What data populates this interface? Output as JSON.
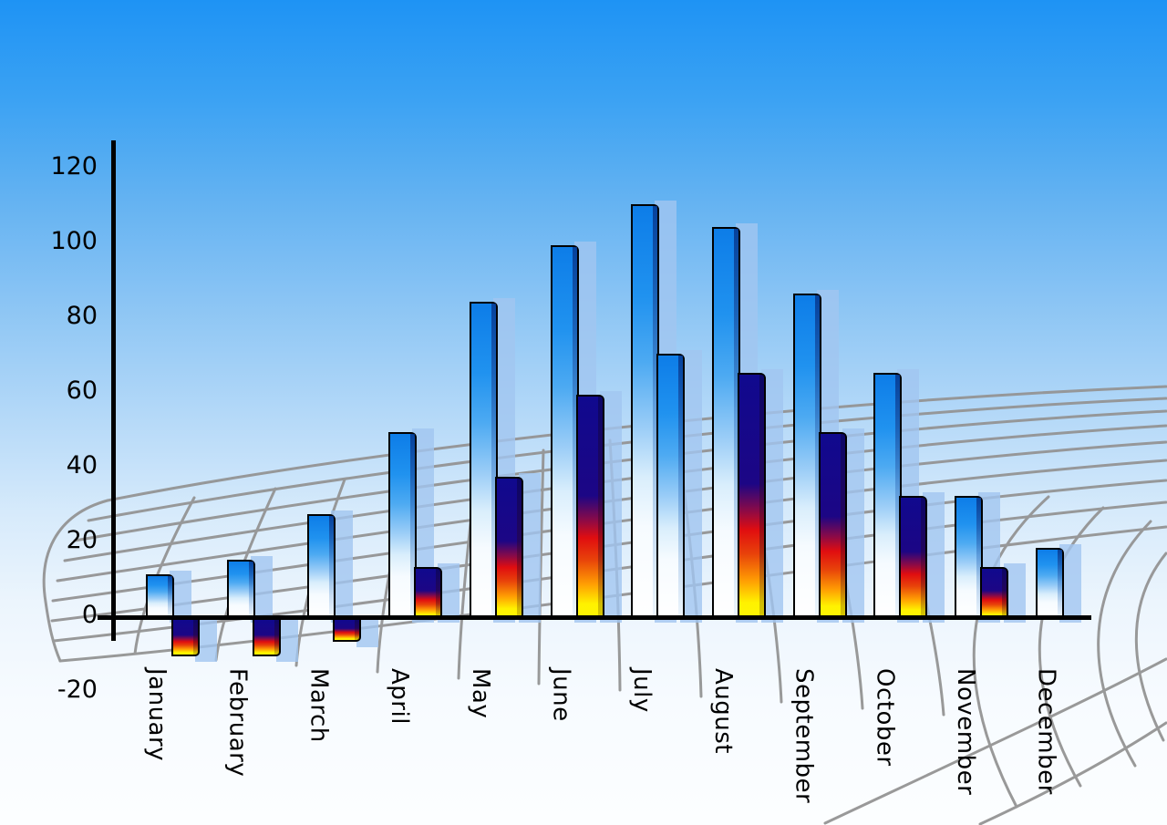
{
  "chart_data": {
    "type": "bar",
    "title": "",
    "xlabel": "",
    "ylabel": "",
    "categories": [
      "January",
      "February",
      "March",
      "April",
      "May",
      "June",
      "July",
      "August",
      "September",
      "October",
      "November",
      "December"
    ],
    "series": [
      {
        "name": "Series 1 (blue gradient bars)",
        "values": [
          11,
          15,
          27,
          49,
          84,
          99,
          110,
          104,
          86,
          65,
          32,
          18
        ]
      },
      {
        "name": "Series 2 (navy-red-yellow bars)",
        "values": [
          -10,
          -10,
          -6,
          13,
          37,
          59,
          70,
          65,
          49,
          32,
          13,
          null
        ],
        "point_styles": [
          "fire",
          "fire",
          "fire",
          "fire",
          "fire",
          "fire",
          "blue",
          "fire",
          "fire",
          "fire",
          "fire",
          null
        ]
      }
    ],
    "y_axis": {
      "ticks": [
        120,
        100,
        80,
        60,
        40,
        20,
        0,
        -20
      ],
      "min": -20,
      "max": 130,
      "gridlines": false
    },
    "legend_position": "none",
    "background": "sky blue vertical gradient",
    "decor": "curved gray perspective mesh grid behind bars, light-blue offset shadow slab behind every bar"
  },
  "colors": {
    "sky_top": "#1e93f4",
    "sky_bottom": "#fcfeff",
    "bar_blue_top": "#0d7de8",
    "bar_blue_bottom": "#ffffff",
    "bar_fire_navy": "#10098e",
    "bar_fire_red": "#e00d10",
    "bar_fire_yellow": "#fff200",
    "shadow_slab": "#a1c5f0",
    "mesh_line": "#949494",
    "axis_line": "#000000",
    "label_text": "#000000"
  }
}
